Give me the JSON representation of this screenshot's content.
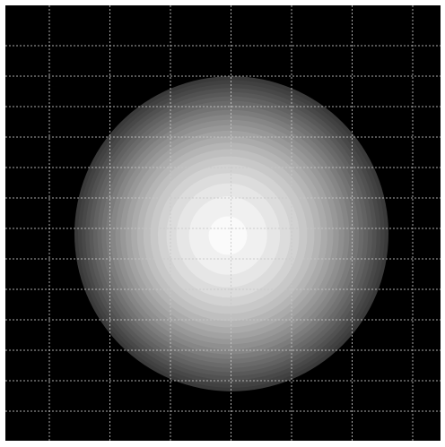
{
  "figure": {
    "grid": true,
    "background": "#000000"
  }
}
